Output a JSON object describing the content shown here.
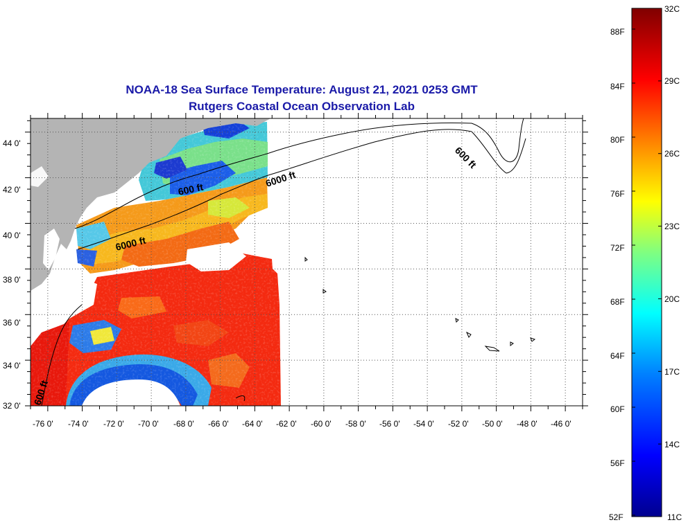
{
  "title": {
    "line1": "NOAA-18 Sea Surface Temperature:  August 21, 2021 0253 GMT",
    "line2": "Rutgers Coastal Ocean Observation Lab"
  },
  "map": {
    "lat_ticks": [
      "32 0'",
      "34 0'",
      "36 0'",
      "38 0'",
      "40 0'",
      "42 0'",
      "44 0'"
    ],
    "lon_ticks": [
      "-76 0'",
      "-74 0'",
      "-72 0'",
      "-70 0'",
      "-68 0'",
      "-66 0'",
      "-64 0'",
      "-62 0'",
      "-60 0'",
      "-58 0'",
      "-56 0'",
      "-54 0'",
      "-52 0'",
      "-50 0'",
      "-48 0'",
      "-46 0'"
    ],
    "contour_labels": [
      "600 ft",
      "6000 ft",
      "6000 ft",
      "600 ft",
      "600 ft"
    ],
    "land_color": "#b4b4b4",
    "grid": "dotted"
  },
  "colorbar": {
    "fahrenheit_labels": [
      "88F",
      "84F",
      "80F",
      "76F",
      "72F",
      "68F",
      "64F",
      "60F",
      "56F",
      "52F"
    ],
    "celsius_labels": [
      "32C",
      "29C",
      "26C",
      "23C",
      "20C",
      "17C",
      "14C",
      "11C"
    ],
    "min_c": 11,
    "max_c": 32,
    "colors": [
      "#00008f",
      "#0000ff",
      "#0080ff",
      "#00ffff",
      "#80ff80",
      "#ffff00",
      "#ff8000",
      "#ff0000",
      "#800000"
    ]
  }
}
